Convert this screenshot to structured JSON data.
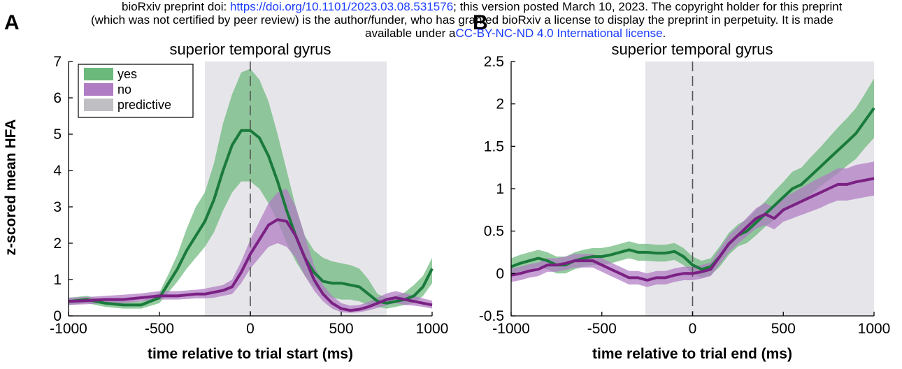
{
  "banner": {
    "line1_pre": "bioRxiv preprint doi: ",
    "line1_link": "https://doi.org/10.1101/2023.03.08.531576",
    "line1_post": "; this version posted March 10, 2023. The copyright holder for this preprint",
    "line2": "(which was not certified by peer review) is the author/funder, who has granted bioRxiv a license to display the preprint in perpetuity. It is made",
    "line3_pre": "available under a",
    "line3_link": "CC-BY-NC-ND 4.0 International license",
    "line3_post": "."
  },
  "colors": {
    "yes_line": "#1a7a3c",
    "yes_band": "#6cb97c",
    "no_line": "#7b2183",
    "no_band": "#b07cc3",
    "predictive": "#e6e6ea",
    "legend_predictive": "#bfbfc3"
  },
  "chart_data": [
    {
      "panel_letter": "A",
      "type": "line",
      "title": "superior temporal gyrus",
      "xlabel": "time relative to trial start (ms)",
      "ylabel": "z-scored mean HFA",
      "xlim": [
        -1000,
        1000
      ],
      "ylim": [
        0,
        7
      ],
      "xticks": [
        -1000,
        -500,
        0,
        500,
        1000
      ],
      "yticks": [
        0,
        1,
        2,
        3,
        4,
        5,
        6,
        7
      ],
      "xtick_labels": [
        "-1000",
        "-500",
        "0",
        "500",
        "1000"
      ],
      "ytick_labels": [
        "0",
        "1",
        "2",
        "3",
        "4",
        "5",
        "6",
        "7"
      ],
      "predictive_window": [
        -250,
        750
      ],
      "zero_line": 0,
      "legend": {
        "position": "top-left",
        "entries": [
          "yes",
          "no",
          "predictive"
        ]
      },
      "series": [
        {
          "name": "yes",
          "x": [
            -1000,
            -900,
            -800,
            -700,
            -600,
            -500,
            -450,
            -400,
            -350,
            -300,
            -250,
            -200,
            -150,
            -100,
            -50,
            0,
            50,
            100,
            150,
            200,
            250,
            300,
            350,
            400,
            450,
            500,
            550,
            600,
            650,
            700,
            750,
            800,
            850,
            900,
            950,
            1000
          ],
          "y": [
            0.4,
            0.45,
            0.35,
            0.3,
            0.3,
            0.5,
            0.9,
            1.3,
            1.8,
            2.2,
            2.6,
            3.2,
            4.0,
            4.7,
            5.1,
            5.1,
            4.9,
            4.4,
            3.7,
            2.9,
            2.2,
            1.6,
            1.2,
            0.95,
            0.9,
            0.9,
            0.85,
            0.8,
            0.6,
            0.4,
            0.35,
            0.4,
            0.45,
            0.55,
            0.8,
            1.3
          ],
          "lower": [
            0.3,
            0.35,
            0.25,
            0.2,
            0.2,
            0.35,
            0.65,
            0.95,
            1.3,
            1.6,
            1.9,
            2.3,
            2.9,
            3.4,
            3.7,
            3.7,
            3.5,
            3.1,
            2.6,
            2.0,
            1.5,
            1.1,
            0.8,
            0.6,
            0.5,
            0.45,
            0.45,
            0.4,
            0.3,
            0.25,
            0.2,
            0.25,
            0.3,
            0.35,
            0.55,
            0.9
          ],
          "upper": [
            0.5,
            0.55,
            0.45,
            0.4,
            0.4,
            0.65,
            1.15,
            1.7,
            2.4,
            3.0,
            3.4,
            4.2,
            5.3,
            6.1,
            6.7,
            6.8,
            6.5,
            5.9,
            5.0,
            4.0,
            3.0,
            2.2,
            1.8,
            1.6,
            1.5,
            1.45,
            1.4,
            1.3,
            1.0,
            0.6,
            0.5,
            0.55,
            0.65,
            0.85,
            1.1,
            1.6
          ]
        },
        {
          "name": "no",
          "x": [
            -1000,
            -900,
            -800,
            -700,
            -600,
            -500,
            -400,
            -300,
            -250,
            -200,
            -150,
            -100,
            -50,
            0,
            50,
            100,
            150,
            200,
            250,
            300,
            350,
            400,
            450,
            500,
            550,
            600,
            650,
            700,
            750,
            800,
            850,
            900,
            950,
            1000
          ],
          "y": [
            0.4,
            0.42,
            0.45,
            0.45,
            0.5,
            0.55,
            0.55,
            0.6,
            0.6,
            0.65,
            0.7,
            0.8,
            1.2,
            1.7,
            2.1,
            2.5,
            2.65,
            2.6,
            2.2,
            1.6,
            1.0,
            0.6,
            0.35,
            0.2,
            0.15,
            0.18,
            0.25,
            0.35,
            0.45,
            0.5,
            0.45,
            0.4,
            0.35,
            0.3
          ],
          "lower": [
            0.3,
            0.32,
            0.35,
            0.35,
            0.4,
            0.45,
            0.45,
            0.48,
            0.48,
            0.5,
            0.55,
            0.6,
            0.9,
            1.3,
            1.6,
            1.9,
            2.0,
            1.9,
            1.6,
            1.1,
            0.7,
            0.4,
            0.2,
            0.1,
            0.08,
            0.1,
            0.15,
            0.22,
            0.3,
            0.35,
            0.3,
            0.28,
            0.25,
            0.2
          ],
          "upper": [
            0.5,
            0.52,
            0.55,
            0.58,
            0.62,
            0.68,
            0.68,
            0.72,
            0.75,
            0.8,
            0.85,
            1.0,
            1.5,
            2.1,
            2.6,
            3.1,
            3.4,
            3.5,
            3.0,
            2.2,
            1.4,
            0.85,
            0.55,
            0.35,
            0.28,
            0.3,
            0.38,
            0.5,
            0.62,
            0.68,
            0.62,
            0.55,
            0.48,
            0.42
          ]
        }
      ]
    },
    {
      "panel_letter": "B",
      "type": "line",
      "title": "superior temporal gyrus",
      "xlabel": "time relative to trial end (ms)",
      "ylabel": "",
      "xlim": [
        -1000,
        1000
      ],
      "ylim": [
        -0.5,
        2.5
      ],
      "xticks": [
        -1000,
        -500,
        0,
        500,
        1000
      ],
      "yticks": [
        -0.5,
        0,
        0.5,
        1,
        1.5,
        2,
        2.5
      ],
      "xtick_labels": [
        "-1000",
        "-500",
        "0",
        "500",
        "1000"
      ],
      "ytick_labels": [
        "-0.5",
        "0",
        "0.5",
        "1",
        "1.5",
        "2",
        "2.5"
      ],
      "predictive_window": [
        -260,
        1000
      ],
      "zero_line": 0,
      "series": [
        {
          "name": "yes",
          "x": [
            -1000,
            -950,
            -900,
            -850,
            -800,
            -750,
            -700,
            -650,
            -600,
            -550,
            -500,
            -450,
            -400,
            -350,
            -300,
            -250,
            -200,
            -150,
            -100,
            -50,
            0,
            50,
            100,
            150,
            200,
            250,
            300,
            350,
            400,
            450,
            500,
            550,
            600,
            650,
            700,
            750,
            800,
            850,
            900,
            950,
            1000
          ],
          "y": [
            0.08,
            0.12,
            0.15,
            0.18,
            0.15,
            0.1,
            0.1,
            0.15,
            0.18,
            0.2,
            0.2,
            0.22,
            0.25,
            0.28,
            0.25,
            0.25,
            0.24,
            0.24,
            0.26,
            0.2,
            0.1,
            0.05,
            0.08,
            0.2,
            0.35,
            0.45,
            0.5,
            0.6,
            0.7,
            0.8,
            0.9,
            1.0,
            1.05,
            1.15,
            1.25,
            1.35,
            1.45,
            1.55,
            1.65,
            1.8,
            1.95
          ],
          "lower": [
            -0.02,
            0.02,
            0.05,
            0.08,
            0.05,
            0.0,
            0.0,
            0.05,
            0.08,
            0.1,
            0.1,
            0.12,
            0.15,
            0.18,
            0.15,
            0.15,
            0.14,
            0.14,
            0.16,
            0.1,
            0.0,
            -0.05,
            -0.02,
            0.08,
            0.22,
            0.32,
            0.36,
            0.45,
            0.55,
            0.63,
            0.72,
            0.8,
            0.85,
            0.93,
            1.02,
            1.1,
            1.18,
            1.27,
            1.35,
            1.48,
            1.6
          ],
          "upper": [
            0.18,
            0.22,
            0.25,
            0.28,
            0.25,
            0.2,
            0.2,
            0.25,
            0.28,
            0.3,
            0.3,
            0.32,
            0.35,
            0.38,
            0.35,
            0.35,
            0.34,
            0.34,
            0.36,
            0.3,
            0.2,
            0.15,
            0.18,
            0.32,
            0.48,
            0.58,
            0.64,
            0.75,
            0.85,
            0.97,
            1.08,
            1.2,
            1.25,
            1.37,
            1.48,
            1.6,
            1.72,
            1.83,
            1.95,
            2.12,
            2.3
          ]
        },
        {
          "name": "no",
          "x": [
            -1000,
            -950,
            -900,
            -850,
            -800,
            -750,
            -700,
            -650,
            -600,
            -550,
            -500,
            -450,
            -400,
            -350,
            -300,
            -250,
            -200,
            -150,
            -100,
            -50,
            0,
            50,
            100,
            150,
            200,
            250,
            300,
            350,
            400,
            450,
            500,
            550,
            600,
            650,
            700,
            750,
            800,
            850,
            900,
            950,
            1000
          ],
          "y": [
            -0.02,
            0.0,
            0.03,
            0.05,
            0.1,
            0.1,
            0.12,
            0.15,
            0.15,
            0.15,
            0.1,
            0.05,
            0.0,
            -0.05,
            -0.05,
            -0.08,
            -0.05,
            -0.05,
            -0.02,
            0.0,
            0.0,
            0.02,
            0.05,
            0.2,
            0.35,
            0.45,
            0.55,
            0.65,
            0.7,
            0.65,
            0.75,
            0.8,
            0.85,
            0.9,
            0.95,
            1.0,
            1.05,
            1.05,
            1.08,
            1.1,
            1.12
          ],
          "lower": [
            -0.1,
            -0.08,
            -0.05,
            -0.03,
            0.02,
            0.02,
            0.04,
            0.07,
            0.07,
            0.07,
            0.02,
            -0.03,
            -0.08,
            -0.13,
            -0.13,
            -0.16,
            -0.13,
            -0.13,
            -0.1,
            -0.08,
            -0.08,
            -0.06,
            -0.03,
            0.11,
            0.25,
            0.35,
            0.44,
            0.53,
            0.57,
            0.52,
            0.61,
            0.65,
            0.69,
            0.73,
            0.77,
            0.82,
            0.86,
            0.86,
            0.88,
            0.9,
            0.92
          ],
          "upper": [
            0.06,
            0.08,
            0.11,
            0.13,
            0.18,
            0.18,
            0.2,
            0.23,
            0.23,
            0.23,
            0.18,
            0.13,
            0.08,
            0.03,
            0.03,
            0.0,
            0.03,
            0.03,
            0.06,
            0.08,
            0.08,
            0.1,
            0.13,
            0.29,
            0.45,
            0.55,
            0.66,
            0.77,
            0.83,
            0.78,
            0.89,
            0.95,
            1.01,
            1.07,
            1.13,
            1.18,
            1.24,
            1.24,
            1.28,
            1.3,
            1.32
          ]
        }
      ]
    }
  ]
}
